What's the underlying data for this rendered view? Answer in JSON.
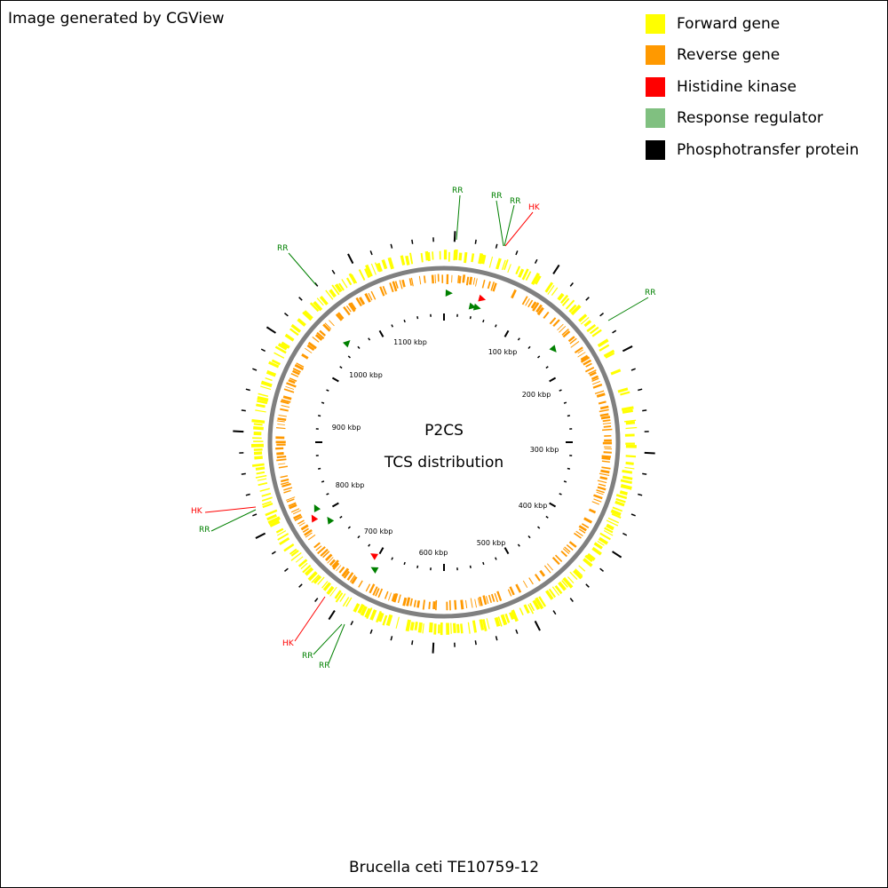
{
  "credit": "Image generated by CGView",
  "caption": "Brucella ceti TE10759-12",
  "center": {
    "title": "P2CS",
    "subtitle": "TCS distribution"
  },
  "legend": [
    {
      "label": "Forward gene",
      "color": "#ffff00"
    },
    {
      "label": "Reverse gene",
      "color": "#ff9900"
    },
    {
      "label": "Histidine kinase",
      "color": "#ff0000"
    },
    {
      "label": "Response regulator",
      "color": "#80c080"
    },
    {
      "label": "Phosphotransfer protein",
      "color": "#000000"
    }
  ],
  "colors": {
    "forward": "#ffff00",
    "reverse": "#ff9900",
    "backbone": "#808080",
    "hk": "#ff0000",
    "rr": "#008000",
    "rr_label": "#008000",
    "ticks": "#000000"
  },
  "tick_labels": [
    "100 kbp",
    "200 kbp",
    "300 kbp",
    "400 kbp",
    "500 kbp",
    "600 kbp",
    "700 kbp",
    "800 kbp",
    "900 kbp",
    "1000 kbp",
    "1100 kbp"
  ],
  "callouts": [
    {
      "label": "RR",
      "type": "rr"
    },
    {
      "label": "RR",
      "type": "rr"
    },
    {
      "label": "RR",
      "type": "rr"
    },
    {
      "label": "HK",
      "type": "hk"
    },
    {
      "label": "RR",
      "type": "rr"
    },
    {
      "label": "RR",
      "type": "rr"
    },
    {
      "label": "HK",
      "type": "hk"
    },
    {
      "label": "RR",
      "type": "rr"
    },
    {
      "label": "HK",
      "type": "hk"
    },
    {
      "label": "RR",
      "type": "rr"
    },
    {
      "label": "RR",
      "type": "rr"
    }
  ]
}
